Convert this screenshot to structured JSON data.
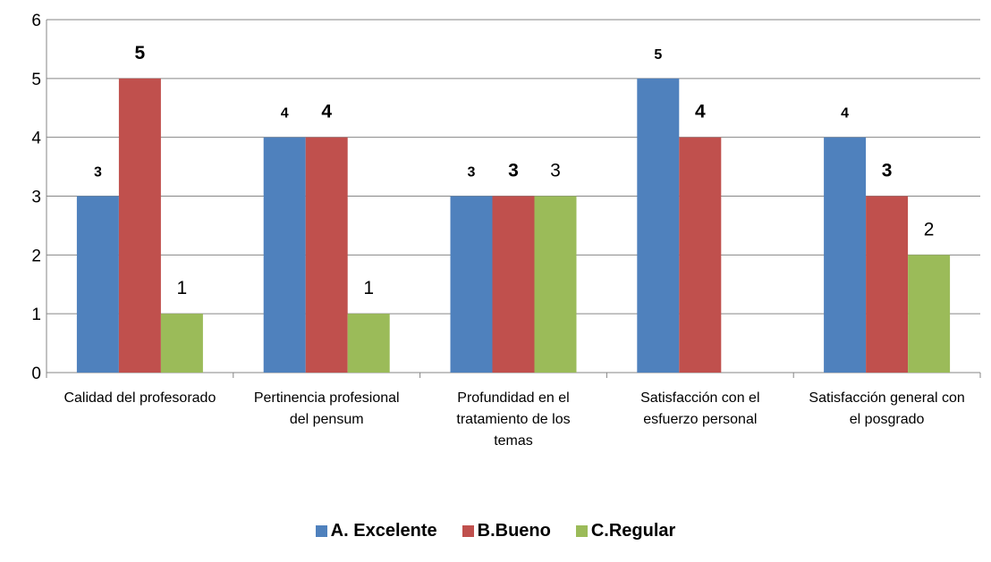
{
  "chart_data": {
    "type": "bar",
    "categories": [
      [
        "Calidad del profesorado"
      ],
      [
        "Pertinencia profesional",
        "del pensum"
      ],
      [
        "Profundidad en el",
        "tratamiento de los",
        "temas"
      ],
      [
        "Satisfacción con el",
        "esfuerzo personal"
      ],
      [
        "Satisfacción general con",
        "el posgrado"
      ]
    ],
    "series": [
      {
        "name": "A. Excelente",
        "color": "#4f81bd",
        "values": [
          3,
          4,
          3,
          5,
          4
        ],
        "labels": [
          "3",
          "4",
          "3",
          "5",
          "4"
        ]
      },
      {
        "name": "B.Bueno",
        "color": "#c0504d",
        "values": [
          5,
          4,
          3,
          4,
          3
        ],
        "labels": [
          "5",
          "4",
          "3",
          "4",
          "3"
        ]
      },
      {
        "name": "C.Regular",
        "color": "#9bbb59",
        "values": [
          1,
          1,
          3,
          null,
          2
        ],
        "labels": [
          "1",
          "1",
          "3",
          "",
          "2"
        ]
      }
    ],
    "ylim": [
      0,
      6
    ],
    "yticks": [
      "0",
      "1",
      "2",
      "3",
      "4",
      "5",
      "6"
    ],
    "grid": true,
    "legend_position": "bottom"
  }
}
